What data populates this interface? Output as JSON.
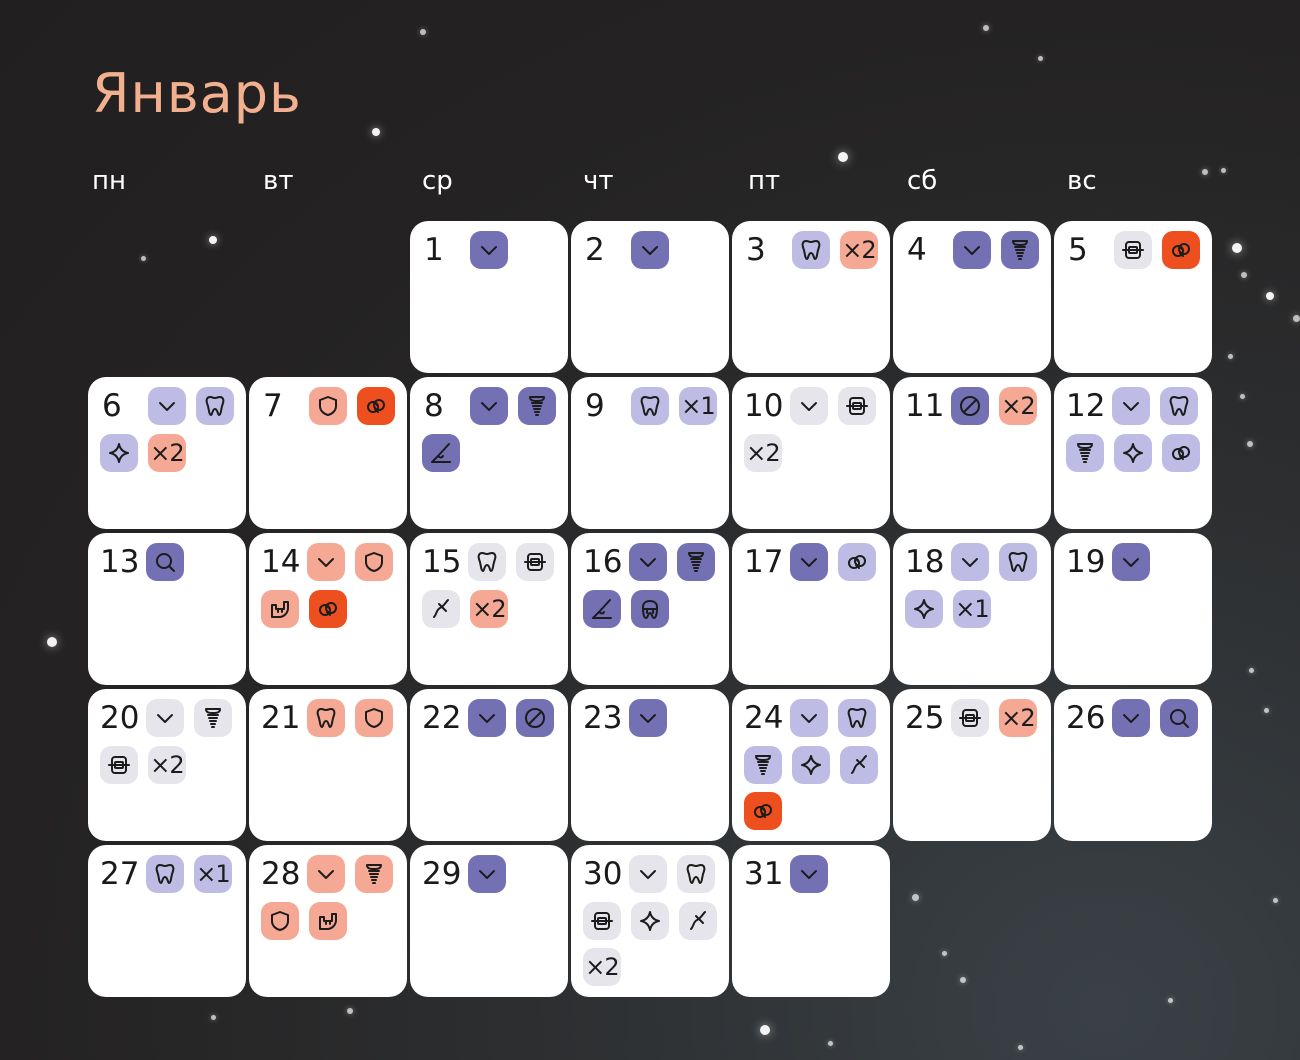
{
  "month": "Январь",
  "weekdays": [
    "пн",
    "вт",
    "ср",
    "чт",
    "пт",
    "сб",
    "вс"
  ],
  "colors": {
    "dark": "#7370b4",
    "lavender": "#bebce4",
    "pale": "#e6e5ec",
    "peach": "#f5a994",
    "red": "#ee4f1e",
    "title": "#f2b08f"
  },
  "days": [
    {
      "n": "1",
      "icons": [
        [
          "check",
          "dark"
        ]
      ]
    },
    {
      "n": "2",
      "icons": [
        [
          "check",
          "dark"
        ]
      ]
    },
    {
      "n": "3",
      "icons": [
        [
          "tooth",
          "lav"
        ],
        [
          "x2",
          "peach"
        ]
      ]
    },
    {
      "n": "4",
      "icons": [
        [
          "check",
          "dark"
        ],
        [
          "implant",
          "dark"
        ]
      ]
    },
    {
      "n": "5",
      "icons": [
        [
          "braces",
          "pale"
        ],
        [
          "rings",
          "red"
        ]
      ]
    },
    {
      "n": "6",
      "icons": [
        [
          "check",
          "lav"
        ],
        [
          "tooth",
          "lav"
        ],
        [
          "sparkle",
          "lav"
        ],
        [
          "x2",
          "peach"
        ]
      ]
    },
    {
      "n": "7",
      "icons": [
        [
          "shield",
          "peach"
        ],
        [
          "rings",
          "red"
        ]
      ]
    },
    {
      "n": "8",
      "icons": [
        [
          "check",
          "dark"
        ],
        [
          "implant",
          "dark"
        ],
        [
          "scalpel",
          "dark"
        ]
      ]
    },
    {
      "n": "9",
      "icons": [
        [
          "tooth",
          "lav"
        ],
        [
          "x1",
          "lav"
        ]
      ]
    },
    {
      "n": "10",
      "icons": [
        [
          "check",
          "pale"
        ],
        [
          "braces",
          "pale"
        ],
        [
          "x2",
          "pale"
        ]
      ]
    },
    {
      "n": "11",
      "icons": [
        [
          "ban",
          "dark"
        ],
        [
          "x2",
          "peach"
        ]
      ]
    },
    {
      "n": "12",
      "icons": [
        [
          "check",
          "lav"
        ],
        [
          "tooth",
          "lav"
        ],
        [
          "implant",
          "lav"
        ],
        [
          "sparkle",
          "lav"
        ],
        [
          "rings",
          "lav"
        ]
      ]
    },
    {
      "n": "13",
      "icons": [
        [
          "search",
          "dark"
        ]
      ]
    },
    {
      "n": "14",
      "icons": [
        [
          "check",
          "peach"
        ],
        [
          "shield",
          "peach"
        ],
        [
          "jaw",
          "peach"
        ],
        [
          "rings",
          "red"
        ]
      ]
    },
    {
      "n": "15",
      "icons": [
        [
          "tooth",
          "pale"
        ],
        [
          "braces",
          "pale"
        ],
        [
          "floss",
          "pale"
        ],
        [
          "x2",
          "peach"
        ]
      ]
    },
    {
      "n": "16",
      "icons": [
        [
          "check",
          "dark"
        ],
        [
          "implant",
          "dark"
        ],
        [
          "scalpel",
          "dark"
        ],
        [
          "crown",
          "dark"
        ]
      ]
    },
    {
      "n": "17",
      "icons": [
        [
          "check",
          "dark"
        ],
        [
          "rings",
          "lav"
        ]
      ]
    },
    {
      "n": "18",
      "icons": [
        [
          "check",
          "lav"
        ],
        [
          "tooth",
          "lav"
        ],
        [
          "sparkle",
          "lav"
        ],
        [
          "x1",
          "lav"
        ]
      ]
    },
    {
      "n": "19",
      "icons": [
        [
          "check",
          "dark"
        ]
      ]
    },
    {
      "n": "20",
      "icons": [
        [
          "check",
          "pale"
        ],
        [
          "implant",
          "pale"
        ],
        [
          "braces",
          "pale"
        ],
        [
          "x2",
          "pale"
        ]
      ]
    },
    {
      "n": "21",
      "icons": [
        [
          "tooth",
          "peach"
        ],
        [
          "shield",
          "peach"
        ]
      ]
    },
    {
      "n": "22",
      "icons": [
        [
          "check",
          "dark"
        ],
        [
          "ban",
          "dark"
        ]
      ]
    },
    {
      "n": "23",
      "icons": [
        [
          "check",
          "dark"
        ]
      ]
    },
    {
      "n": "24",
      "icons": [
        [
          "check",
          "lav"
        ],
        [
          "tooth",
          "lav"
        ],
        [
          "implant",
          "lav"
        ],
        [
          "sparkle",
          "lav"
        ],
        [
          "floss",
          "lav"
        ],
        [
          "rings",
          "red"
        ]
      ]
    },
    {
      "n": "25",
      "icons": [
        [
          "braces",
          "pale"
        ],
        [
          "x2",
          "peach"
        ]
      ]
    },
    {
      "n": "26",
      "icons": [
        [
          "check",
          "dark"
        ],
        [
          "search",
          "dark"
        ]
      ]
    },
    {
      "n": "27",
      "icons": [
        [
          "tooth",
          "lav"
        ],
        [
          "x1",
          "lav"
        ]
      ]
    },
    {
      "n": "28",
      "icons": [
        [
          "check",
          "peach"
        ],
        [
          "implant",
          "peach"
        ],
        [
          "shield",
          "peach"
        ],
        [
          "jaw",
          "peach"
        ]
      ]
    },
    {
      "n": "29",
      "icons": [
        [
          "check",
          "dark"
        ]
      ]
    },
    {
      "n": "30",
      "icons": [
        [
          "check",
          "pale"
        ],
        [
          "tooth",
          "pale"
        ],
        [
          "braces",
          "pale"
        ],
        [
          "sparkle",
          "pale"
        ],
        [
          "floss",
          "pale"
        ],
        [
          "x2",
          "pale"
        ]
      ]
    },
    {
      "n": "31",
      "icons": [
        [
          "check",
          "dark"
        ]
      ]
    }
  ],
  "icon_labels": {
    "x1": "×1",
    "x2": "×2"
  }
}
